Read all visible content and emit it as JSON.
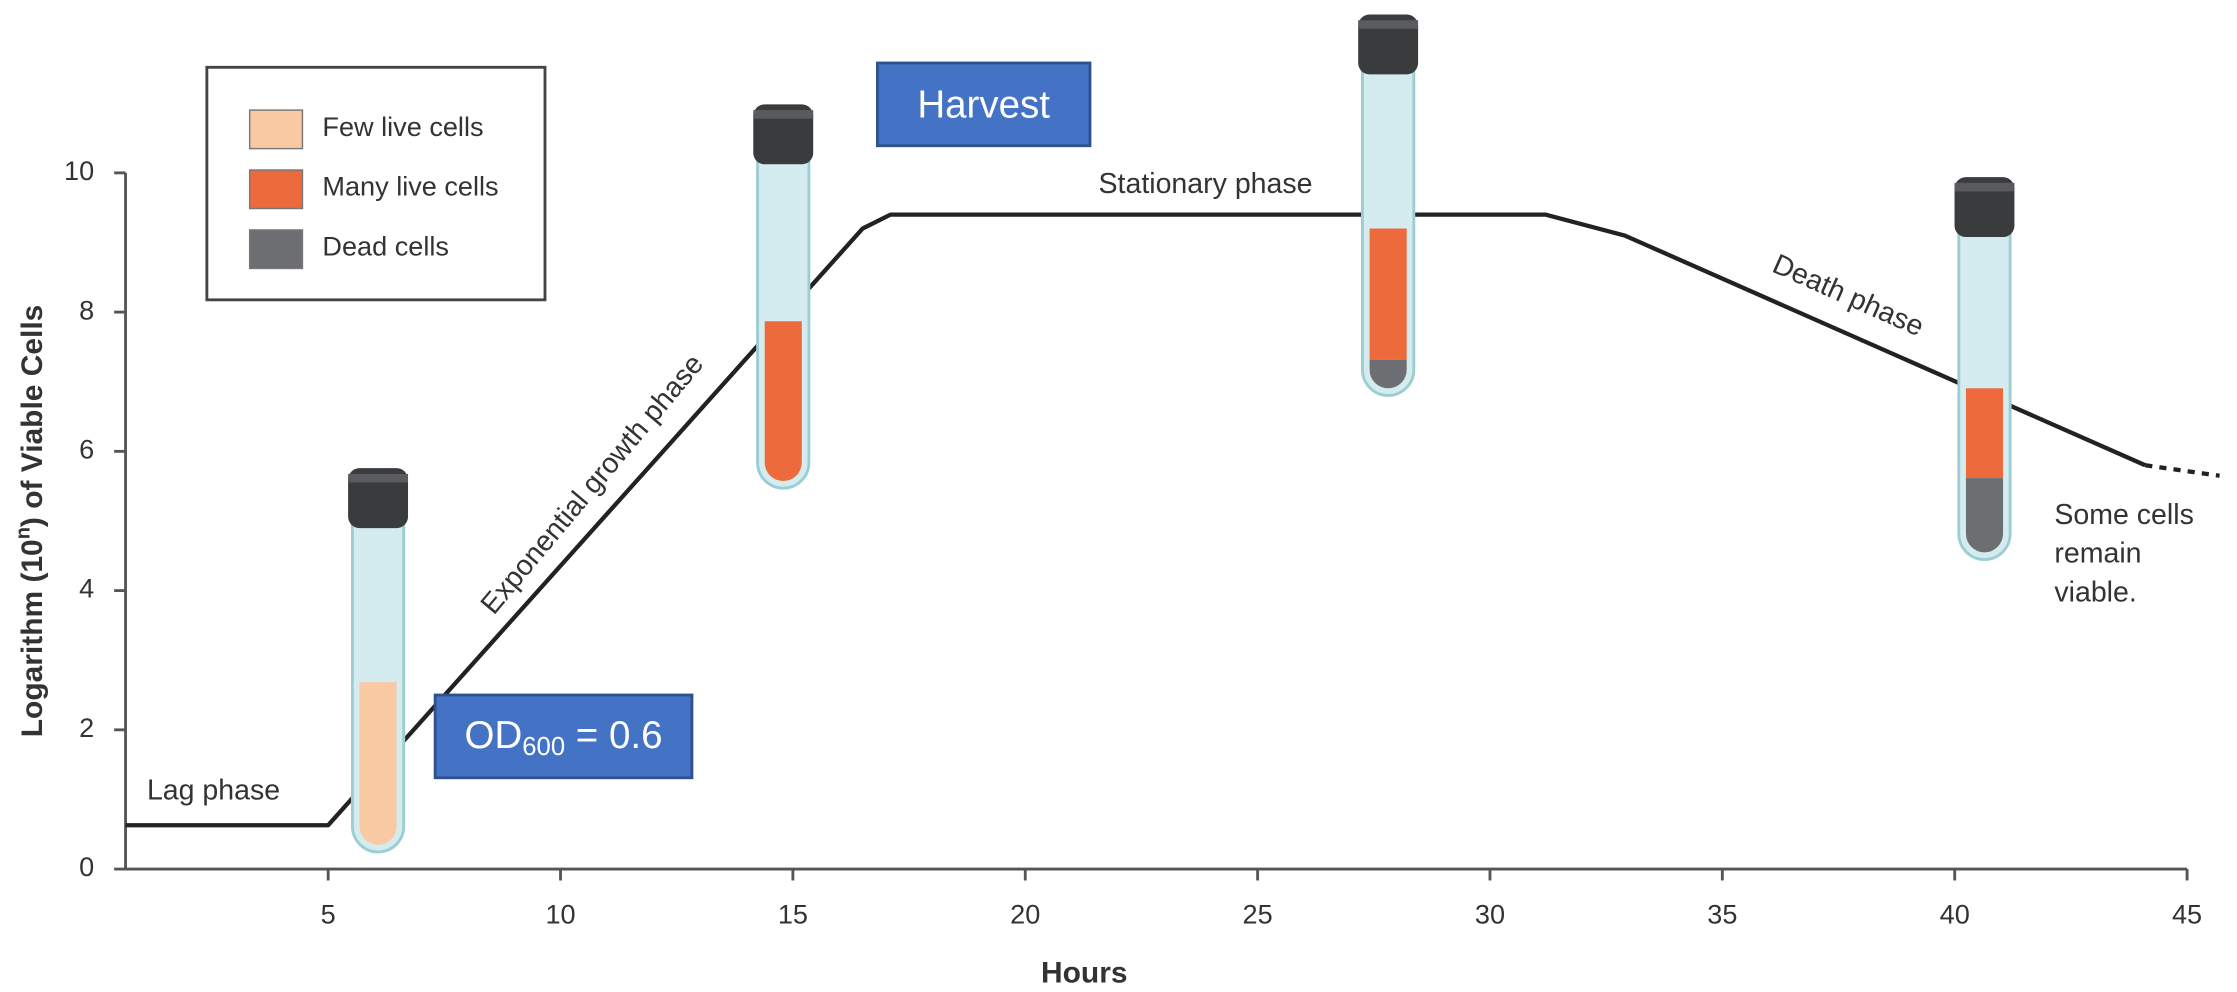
{
  "chart_data": {
    "type": "line",
    "x_label": "Hours",
    "y_label": {
      "before": "Logarithm (10",
      "sup": "n",
      "after": ") of Viable Cells"
    },
    "x": [
      0.64,
      5,
      16.5,
      17.1,
      31.2,
      32.9,
      44.1,
      45.7
    ],
    "series": [
      {
        "color": "#222222",
        "style": "solid",
        "values": [
          0.63,
          0.63,
          9.2,
          9.4,
          9.4,
          9.1,
          5.8,
          null
        ]
      },
      {
        "color": "#222222",
        "style": "dotted",
        "values": [
          null,
          null,
          null,
          null,
          null,
          null,
          5.8,
          5.65
        ]
      }
    ],
    "xlim": [
      0.64,
      45
    ],
    "xticks": [
      5,
      10,
      15,
      20,
      25,
      30,
      35,
      40,
      45
    ],
    "ylim": [
      0,
      10
    ],
    "yticks": [
      0,
      2,
      4,
      6,
      8,
      10
    ],
    "legend": {
      "position": "upper left",
      "items": [
        {
          "label": "Few live cells",
          "color": "#f9c9a4"
        },
        {
          "label": "Many live cells",
          "color": "#ec6a3c"
        },
        {
          "label": "Dead cells",
          "color": "#6d6e71"
        }
      ]
    },
    "annotations": {
      "lag": "Lag phase",
      "exponential": "Exponential growth phase",
      "stationary": "Stationary phase",
      "death": "Death phase",
      "viable": [
        "Some cells",
        "remain",
        "viable."
      ]
    },
    "boxes": {
      "harvest": "Harvest",
      "od": {
        "main": "OD",
        "sub": "600",
        "rest": " = 0.6"
      }
    }
  }
}
